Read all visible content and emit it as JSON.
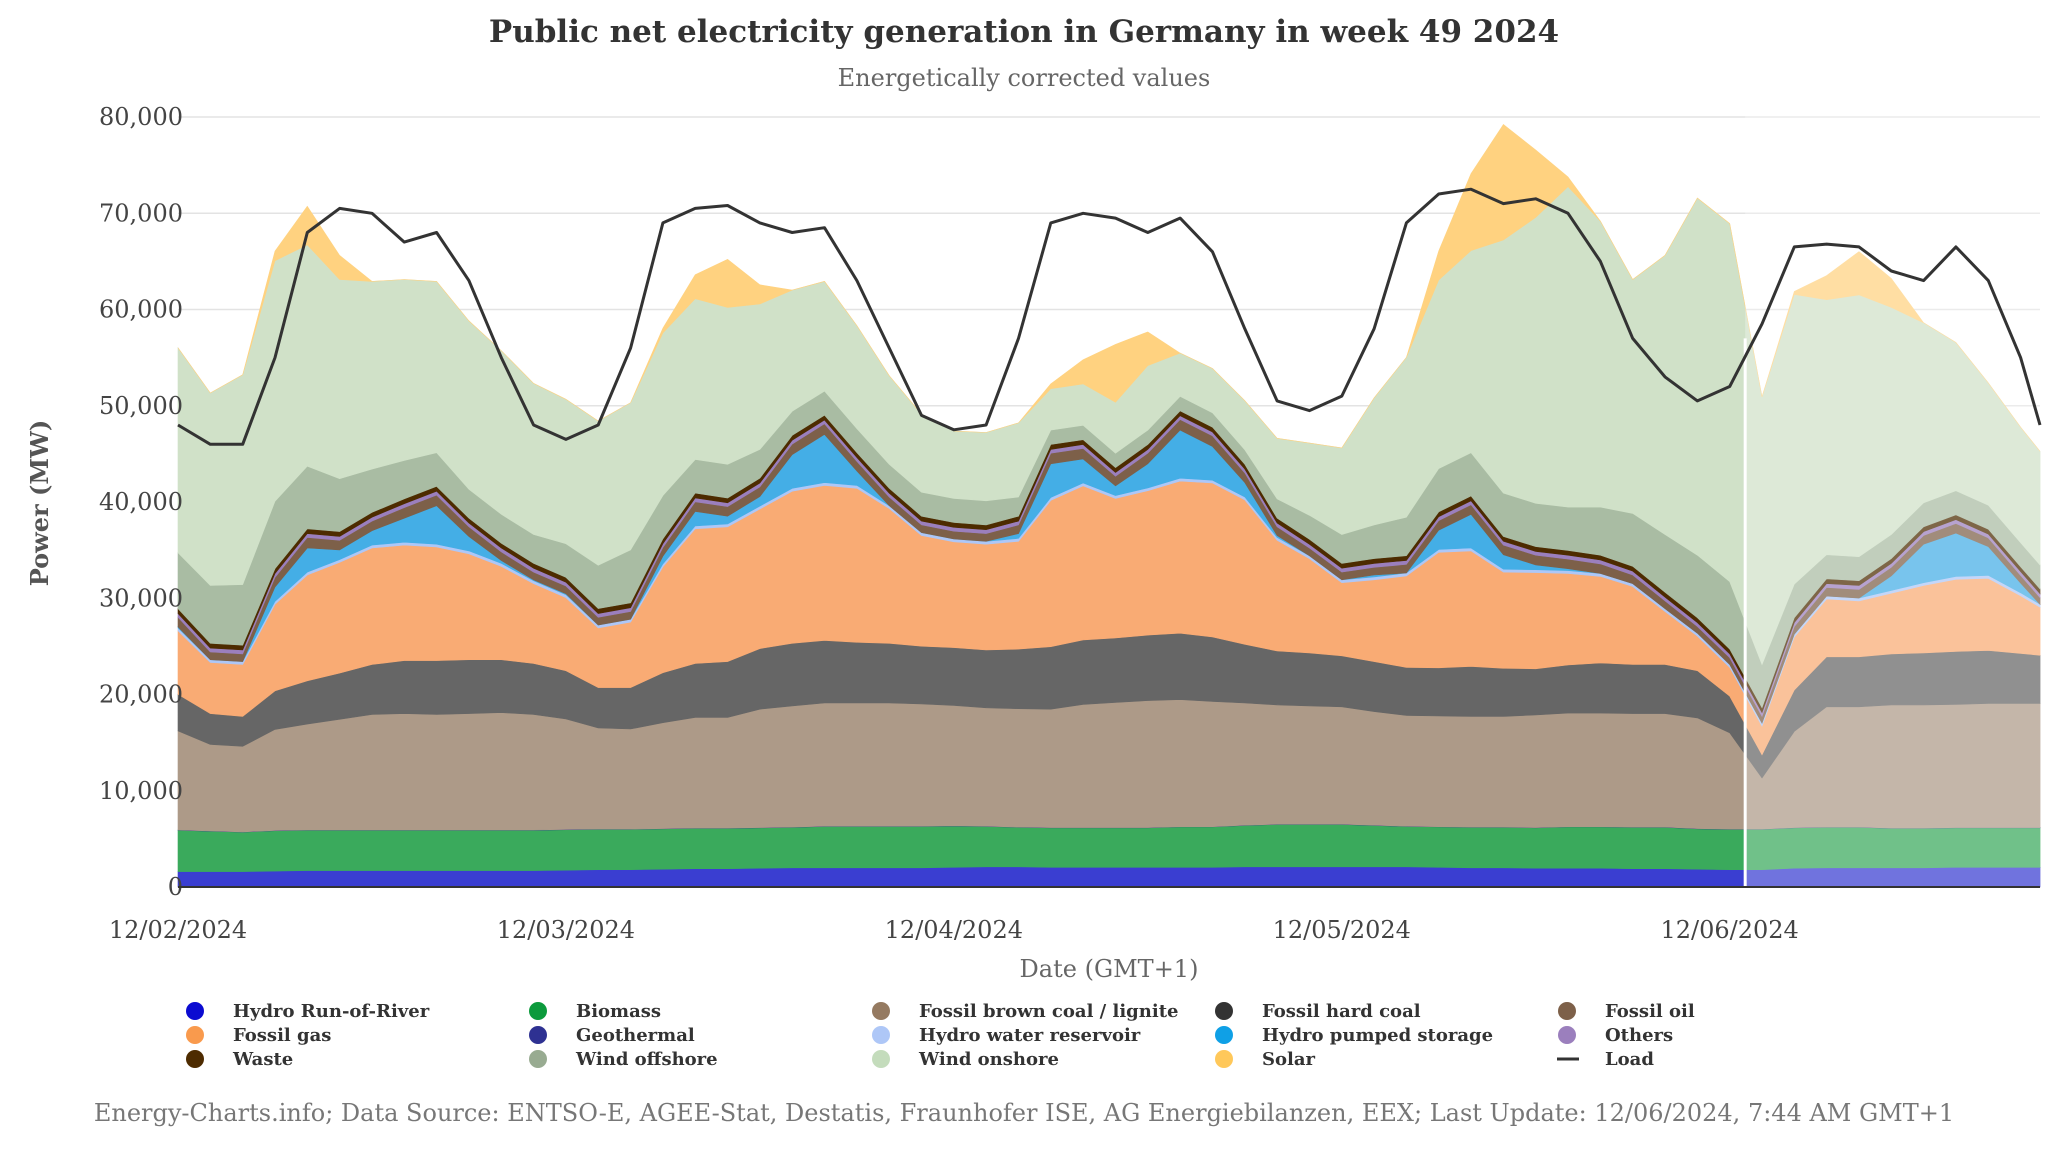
{
  "chart_data": {
    "type": "area",
    "title": "Public net electricity generation in Germany in week 49 2024",
    "subtitle": "Energetically corrected values",
    "xlabel": "Date (GMT+1)",
    "ylabel": "Power (MW)",
    "ylim": [
      0,
      80000
    ],
    "y_ticks": [
      0,
      10000,
      20000,
      30000,
      40000,
      50000,
      60000,
      70000,
      80000
    ],
    "y_tick_labels": [
      "0",
      "10,000",
      "20,000",
      "30,000",
      "40,000",
      "50,000",
      "60,000",
      "70,000",
      "80,000"
    ],
    "x_range_days": [
      0,
      4.8
    ],
    "x_ticks": [
      {
        "day": 0,
        "label": "12/02/2024"
      },
      {
        "day": 1,
        "label": "12/03/2024"
      },
      {
        "day": 2,
        "label": "12/04/2024"
      },
      {
        "day": 3,
        "label": "12/05/2024"
      },
      {
        "day": 4,
        "label": "12/06/2024"
      }
    ],
    "forecast_start_day": 4.04,
    "grid": true,
    "legend_position": "bottom",
    "x_days": [
      0,
      0.0833,
      0.1667,
      0.25,
      0.3333,
      0.4167,
      0.5,
      0.5833,
      0.6667,
      0.75,
      0.8333,
      0.9167,
      1,
      1.0833,
      1.1667,
      1.25,
      1.3333,
      1.4167,
      1.5,
      1.5833,
      1.6667,
      1.75,
      1.8333,
      1.9167,
      2,
      2.0833,
      2.1667,
      2.25,
      2.3333,
      2.4167,
      2.5,
      2.5833,
      2.6667,
      2.75,
      2.8333,
      2.9167,
      3,
      3.0833,
      3.1667,
      3.25,
      3.3333,
      3.4167,
      3.5,
      3.5833,
      3.6667,
      3.75,
      3.8333,
      3.9167,
      4,
      4.0833,
      4.1667,
      4.25,
      4.3333,
      4.4167,
      4.5,
      4.5833,
      4.6667,
      4.75,
      4.8
    ],
    "series": [
      {
        "name": "Hydro Run-of-River",
        "color": "#3a3ed1",
        "values": [
          1600,
          1600,
          1600,
          1650,
          1700,
          1700,
          1700,
          1700,
          1700,
          1700,
          1700,
          1700,
          1750,
          1800,
          1800,
          1850,
          1900,
          1900,
          1950,
          2000,
          2000,
          2000,
          2000,
          2000,
          2050,
          2100,
          2100,
          2050,
          2050,
          2050,
          2050,
          2050,
          2050,
          2100,
          2100,
          2100,
          2100,
          2100,
          2100,
          2050,
          2000,
          2000,
          1950,
          1950,
          1950,
          1900,
          1900,
          1850,
          1800,
          1800,
          1950,
          2000,
          2000,
          2000,
          2000,
          2050,
          2050,
          2050,
          2050
        ]
      },
      {
        "name": "Biomass",
        "color": "#3aaa5c",
        "values": [
          4300,
          4200,
          4100,
          4200,
          4200,
          4200,
          4200,
          4200,
          4200,
          4200,
          4200,
          4200,
          4200,
          4200,
          4200,
          4200,
          4200,
          4200,
          4200,
          4200,
          4300,
          4300,
          4300,
          4300,
          4300,
          4200,
          4100,
          4100,
          4100,
          4100,
          4100,
          4200,
          4200,
          4300,
          4400,
          4400,
          4400,
          4300,
          4200,
          4200,
          4200,
          4200,
          4200,
          4300,
          4300,
          4300,
          4300,
          4200,
          4200,
          4200,
          4200,
          4200,
          4200,
          4100,
          4100,
          4100,
          4100,
          4100,
          4100
        ]
      },
      {
        "name": "Geothermal",
        "color": "#2e3192",
        "values": [
          20,
          20,
          20,
          20,
          20,
          20,
          20,
          20,
          20,
          20,
          20,
          20,
          20,
          20,
          20,
          20,
          20,
          20,
          20,
          20,
          20,
          20,
          20,
          20,
          20,
          20,
          20,
          20,
          20,
          20,
          20,
          20,
          20,
          20,
          20,
          20,
          20,
          20,
          20,
          20,
          20,
          20,
          20,
          20,
          20,
          20,
          20,
          20,
          20,
          20,
          20,
          20,
          20,
          20,
          20,
          20,
          20,
          20,
          20
        ]
      },
      {
        "name": "Fossil brown coal / lignite",
        "color": "#ad9a88",
        "values": [
          10300,
          9000,
          8900,
          10500,
          11000,
          11500,
          12000,
          12100,
          12000,
          12100,
          12200,
          12000,
          11500,
          10500,
          10400,
          11000,
          11500,
          11500,
          12300,
          12600,
          12800,
          12800,
          12800,
          12700,
          12500,
          12300,
          12300,
          12300,
          12800,
          13000,
          13200,
          13200,
          13000,
          12700,
          12400,
          12300,
          12200,
          11800,
          11500,
          11500,
          11500,
          11500,
          11700,
          11800,
          11800,
          11800,
          11800,
          11500,
          10000,
          5300,
          10000,
          12500,
          12500,
          12800,
          12800,
          12800,
          12900,
          12900,
          12900
        ]
      },
      {
        "name": "Fossil hard coal",
        "color": "#666666",
        "values": [
          3800,
          3200,
          3100,
          4000,
          4500,
          4800,
          5200,
          5500,
          5600,
          5600,
          5500,
          5300,
          5000,
          4200,
          4300,
          5200,
          5600,
          5800,
          6300,
          6500,
          6500,
          6300,
          6200,
          6000,
          6000,
          6000,
          6200,
          6500,
          6700,
          6700,
          6800,
          6900,
          6700,
          6100,
          5600,
          5500,
          5300,
          5200,
          5000,
          5000,
          5200,
          5000,
          4800,
          5000,
          5200,
          5100,
          5100,
          4900,
          3800,
          2400,
          4300,
          5200,
          5200,
          5300,
          5400,
          5500,
          5500,
          5200,
          5000
        ]
      },
      {
        "name": "Fossil gas",
        "color": "#f9ab74",
        "values": [
          6600,
          5300,
          5400,
          9000,
          11000,
          11500,
          12100,
          12000,
          11800,
          11000,
          9700,
          8300,
          7600,
          6200,
          6800,
          11000,
          14000,
          14000,
          14500,
          15800,
          16100,
          16000,
          14000,
          11500,
          11000,
          11000,
          11200,
          15200,
          16000,
          14500,
          15000,
          15800,
          16000,
          15000,
          11500,
          9800,
          7600,
          8500,
          9500,
          12000,
          12000,
          10000,
          10000,
          9500,
          9000,
          8100,
          5500,
          3600,
          3000,
          3000,
          5500,
          6000,
          5800,
          6300,
          7000,
          7500,
          7500,
          6000,
          5000
        ]
      },
      {
        "name": "Hydro water reservoir",
        "color": "#aec7f7",
        "values": [
          300,
          300,
          300,
          300,
          300,
          300,
          300,
          300,
          300,
          300,
          300,
          300,
          300,
          300,
          300,
          300,
          300,
          300,
          300,
          300,
          300,
          300,
          300,
          300,
          300,
          300,
          300,
          300,
          300,
          300,
          300,
          300,
          300,
          300,
          300,
          300,
          300,
          300,
          300,
          300,
          300,
          300,
          300,
          300,
          300,
          300,
          300,
          300,
          300,
          300,
          300,
          300,
          300,
          300,
          300,
          300,
          300,
          300,
          300
        ]
      },
      {
        "name": "Hydro pumped storage",
        "color": "#44aee6",
        "values": [
          100,
          0,
          0,
          1500,
          2500,
          1000,
          1500,
          2500,
          4000,
          1500,
          300,
          100,
          100,
          0,
          0,
          800,
          1500,
          800,
          1000,
          3500,
          5000,
          1500,
          0,
          0,
          0,
          0,
          500,
          3500,
          2500,
          1000,
          2500,
          5000,
          3500,
          1500,
          200,
          0,
          0,
          200,
          0,
          2000,
          3500,
          1500,
          500,
          200,
          0,
          0,
          0,
          0,
          0,
          0,
          0,
          0,
          0,
          1500,
          4000,
          4500,
          3000,
          1000,
          0
        ]
      },
      {
        "name": "Fossil oil",
        "color": "#7d6049",
        "values": [
          1000,
          800,
          800,
          1000,
          1100,
          1000,
          1000,
          1100,
          1100,
          1000,
          900,
          800,
          800,
          800,
          800,
          900,
          1000,
          1000,
          1000,
          1100,
          1100,
          1000,
          900,
          800,
          800,
          800,
          900,
          1100,
          1100,
          1000,
          1100,
          1100,
          1100,
          1000,
          900,
          800,
          800,
          800,
          900,
          1000,
          1000,
          1000,
          1000,
          1000,
          1000,
          900,
          800,
          700,
          700,
          700,
          800,
          900,
          900,
          900,
          900,
          1000,
          900,
          800,
          700
        ]
      },
      {
        "name": "Others",
        "color": "#9b7fbd",
        "values": [
          400,
          400,
          400,
          400,
          400,
          400,
          400,
          400,
          400,
          400,
          400,
          400,
          400,
          400,
          400,
          400,
          400,
          400,
          400,
          400,
          400,
          400,
          400,
          400,
          400,
          400,
          400,
          400,
          400,
          400,
          400,
          400,
          400,
          400,
          400,
          400,
          400,
          400,
          400,
          400,
          400,
          400,
          400,
          400,
          400,
          400,
          400,
          400,
          400,
          400,
          400,
          400,
          400,
          400,
          400,
          400,
          400,
          400,
          400
        ]
      },
      {
        "name": "Waste",
        "color": "#4d2b00",
        "values": [
          500,
          500,
          500,
          500,
          500,
          500,
          500,
          500,
          500,
          500,
          500,
          500,
          500,
          500,
          500,
          500,
          500,
          500,
          500,
          500,
          500,
          500,
          500,
          500,
          500,
          500,
          500,
          500,
          500,
          500,
          500,
          500,
          500,
          500,
          500,
          500,
          500,
          500,
          500,
          500,
          500,
          500,
          500,
          500,
          500,
          500,
          500,
          500,
          500,
          500,
          500,
          500,
          500,
          500,
          500,
          500,
          500,
          500,
          500
        ]
      },
      {
        "name": "Wind offshore",
        "color": "#a9bca3",
        "values": [
          5800,
          6000,
          6300,
          7000,
          6500,
          5500,
          4500,
          4000,
          3500,
          3000,
          3000,
          3000,
          3500,
          4500,
          5500,
          4500,
          3500,
          3500,
          3000,
          2500,
          2500,
          2500,
          2500,
          2500,
          2500,
          2500,
          2000,
          1500,
          1500,
          1500,
          1500,
          1500,
          1500,
          1500,
          2000,
          2500,
          3000,
          3500,
          4000,
          4500,
          4500,
          4500,
          4500,
          4500,
          5000,
          5500,
          6000,
          6500,
          7000,
          4500,
          3500,
          2500,
          2500,
          2500,
          2500,
          2500,
          2500,
          2500,
          2500
        ]
      },
      {
        "name": "Wind onshore",
        "color": "#d0e1c8",
        "values": [
          21300,
          20000,
          21800,
          25000,
          23000,
          20700,
          19500,
          18800,
          17800,
          17500,
          17000,
          15700,
          15000,
          15000,
          15300,
          16900,
          16700,
          16300,
          15100,
          12600,
          11400,
          10700,
          9200,
          8100,
          7000,
          7100,
          7700,
          4300,
          4300,
          5300,
          6700,
          4500,
          4600,
          5100,
          6300,
          7500,
          9000,
          13200,
          16600,
          19600,
          21000,
          26300,
          29700,
          33300,
          29700,
          24300,
          29000,
          37100,
          37200,
          27800,
          30100,
          26500,
          27200,
          23600,
          18700,
          15400,
          12700,
          12000,
          11800
        ]
      },
      {
        "name": "Solar",
        "color": "#ffd280",
        "values": [
          0,
          0,
          0,
          1000,
          4000,
          2500,
          0,
          0,
          0,
          0,
          0,
          0,
          0,
          0,
          0,
          500,
          2500,
          5000,
          2000,
          0,
          0,
          0,
          0,
          0,
          0,
          0,
          0,
          500,
          2500,
          6000,
          3500,
          0,
          0,
          0,
          0,
          0,
          0,
          0,
          0,
          3000,
          8000,
          12000,
          7000,
          1000,
          0,
          0,
          0,
          0,
          0,
          0,
          300,
          2500,
          4500,
          3000,
          0,
          0,
          0,
          0,
          0
        ]
      }
    ],
    "load": {
      "name": "Load",
      "color": "#333333",
      "values": [
        48000,
        46000,
        46000,
        55000,
        68000,
        70500,
        70000,
        67000,
        68000,
        63000,
        55000,
        48000,
        46500,
        48000,
        56000,
        69000,
        70500,
        70800,
        69000,
        68000,
        68500,
        63000,
        56000,
        49000,
        47500,
        48000,
        57000,
        69000,
        70000,
        69500,
        68000,
        69500,
        66000,
        58000,
        50500,
        49500,
        51000,
        58000,
        69000,
        72000,
        72500,
        71000,
        71500,
        70000,
        65000,
        57000,
        53000,
        50500,
        52000,
        58500,
        66500,
        66800,
        66500,
        64000,
        63000,
        66500,
        63000,
        55000,
        48000
      ]
    }
  },
  "credits": "Energy-Charts.info; Data Source: ENTSO-E, AGEE-Stat, Destatis, Fraunhofer ISE, AG Energiebilanzen, EEX; Last Update: 12/06/2024, 7:44 AM GMT+1",
  "legend": [
    {
      "name": "Hydro Run-of-River",
      "color": "#0b0bd1",
      "symbol": "dot"
    },
    {
      "name": "Biomass",
      "color": "#0c9a3c",
      "symbol": "dot"
    },
    {
      "name": "Fossil brown coal / lignite",
      "color": "#957a61",
      "symbol": "dot"
    },
    {
      "name": "Fossil hard coal",
      "color": "#333333",
      "symbol": "dot"
    },
    {
      "name": "Fossil oil",
      "color": "#7d6049",
      "symbol": "dot"
    },
    {
      "name": "Fossil gas",
      "color": "#f99a4d",
      "symbol": "dot"
    },
    {
      "name": "Geothermal",
      "color": "#2e3192",
      "symbol": "dot"
    },
    {
      "name": "Hydro water reservoir",
      "color": "#aec7f7",
      "symbol": "dot"
    },
    {
      "name": "Hydro pumped storage",
      "color": "#0fa0e6",
      "symbol": "dot"
    },
    {
      "name": "Others",
      "color": "#9b7fbd",
      "symbol": "dot"
    },
    {
      "name": "Waste",
      "color": "#4d2b00",
      "symbol": "dot"
    },
    {
      "name": "Wind offshore",
      "color": "#98ab91",
      "symbol": "dot"
    },
    {
      "name": "Wind onshore",
      "color": "#c4dcbc",
      "symbol": "dot"
    },
    {
      "name": "Solar",
      "color": "#ffc85a",
      "symbol": "dot"
    },
    {
      "name": "Load",
      "color": "#333333",
      "symbol": "line"
    }
  ]
}
